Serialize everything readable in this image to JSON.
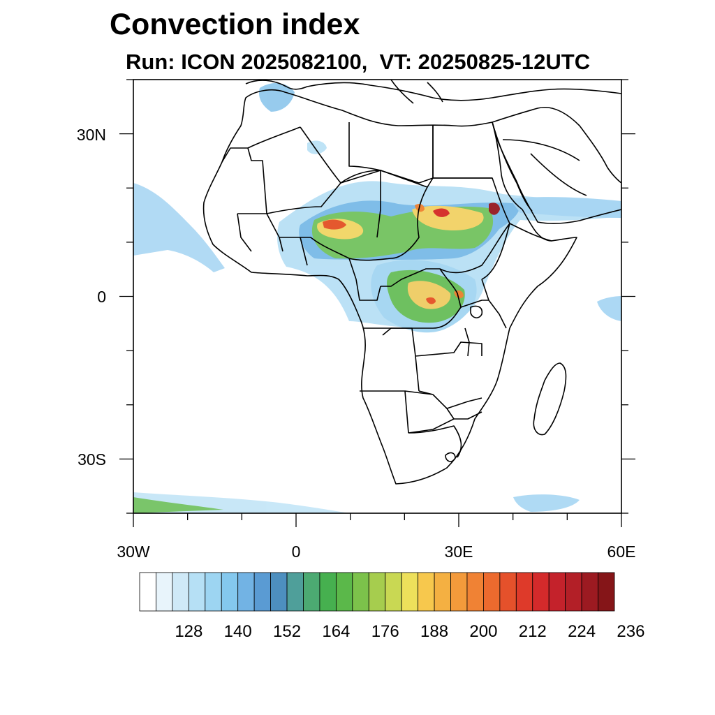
{
  "header": {
    "title": "Convection index",
    "subtitle": "Run: ICON 2025082100,  VT: 20250825-12UTC"
  },
  "axes": {
    "lat_labels": [
      {
        "lat": 30,
        "label": "30N"
      },
      {
        "lat": 0,
        "label": "0"
      },
      {
        "lat": -30,
        "label": "30S"
      }
    ],
    "lon_labels": [
      {
        "lon": -30,
        "label": "30W"
      },
      {
        "lon": 0,
        "label": "0"
      },
      {
        "lon": 30,
        "label": "30E"
      },
      {
        "lon": 60,
        "label": "60E"
      }
    ],
    "lon_range": [
      -30,
      60
    ],
    "lat_range": [
      -40,
      40
    ]
  },
  "colorbar": {
    "colors": [
      "#ffffff",
      "#e8f4fb",
      "#cfe9f7",
      "#b6e0f5",
      "#9dd5f2",
      "#84c8ee",
      "#72b3e4",
      "#5a9bd3",
      "#4d8fbf",
      "#4f9f9a",
      "#4caa72",
      "#46b04f",
      "#5bb84a",
      "#7cc24b",
      "#a6cd4e",
      "#c9d853",
      "#ede05b",
      "#f7c84d",
      "#f4b042",
      "#f39a3b",
      "#f08234",
      "#ec6a2e",
      "#e5512b",
      "#de3a2a",
      "#d42a2b",
      "#c4222b",
      "#b31f27",
      "#9c1a21",
      "#851518"
    ],
    "tick_labels": [
      "128",
      "140",
      "152",
      "164",
      "176",
      "188",
      "200",
      "212",
      "224",
      "236"
    ]
  },
  "map_data": {
    "field": "Convection index",
    "model": "ICON",
    "run": "2025082100",
    "valid_time": "20250825-12UTC"
  }
}
